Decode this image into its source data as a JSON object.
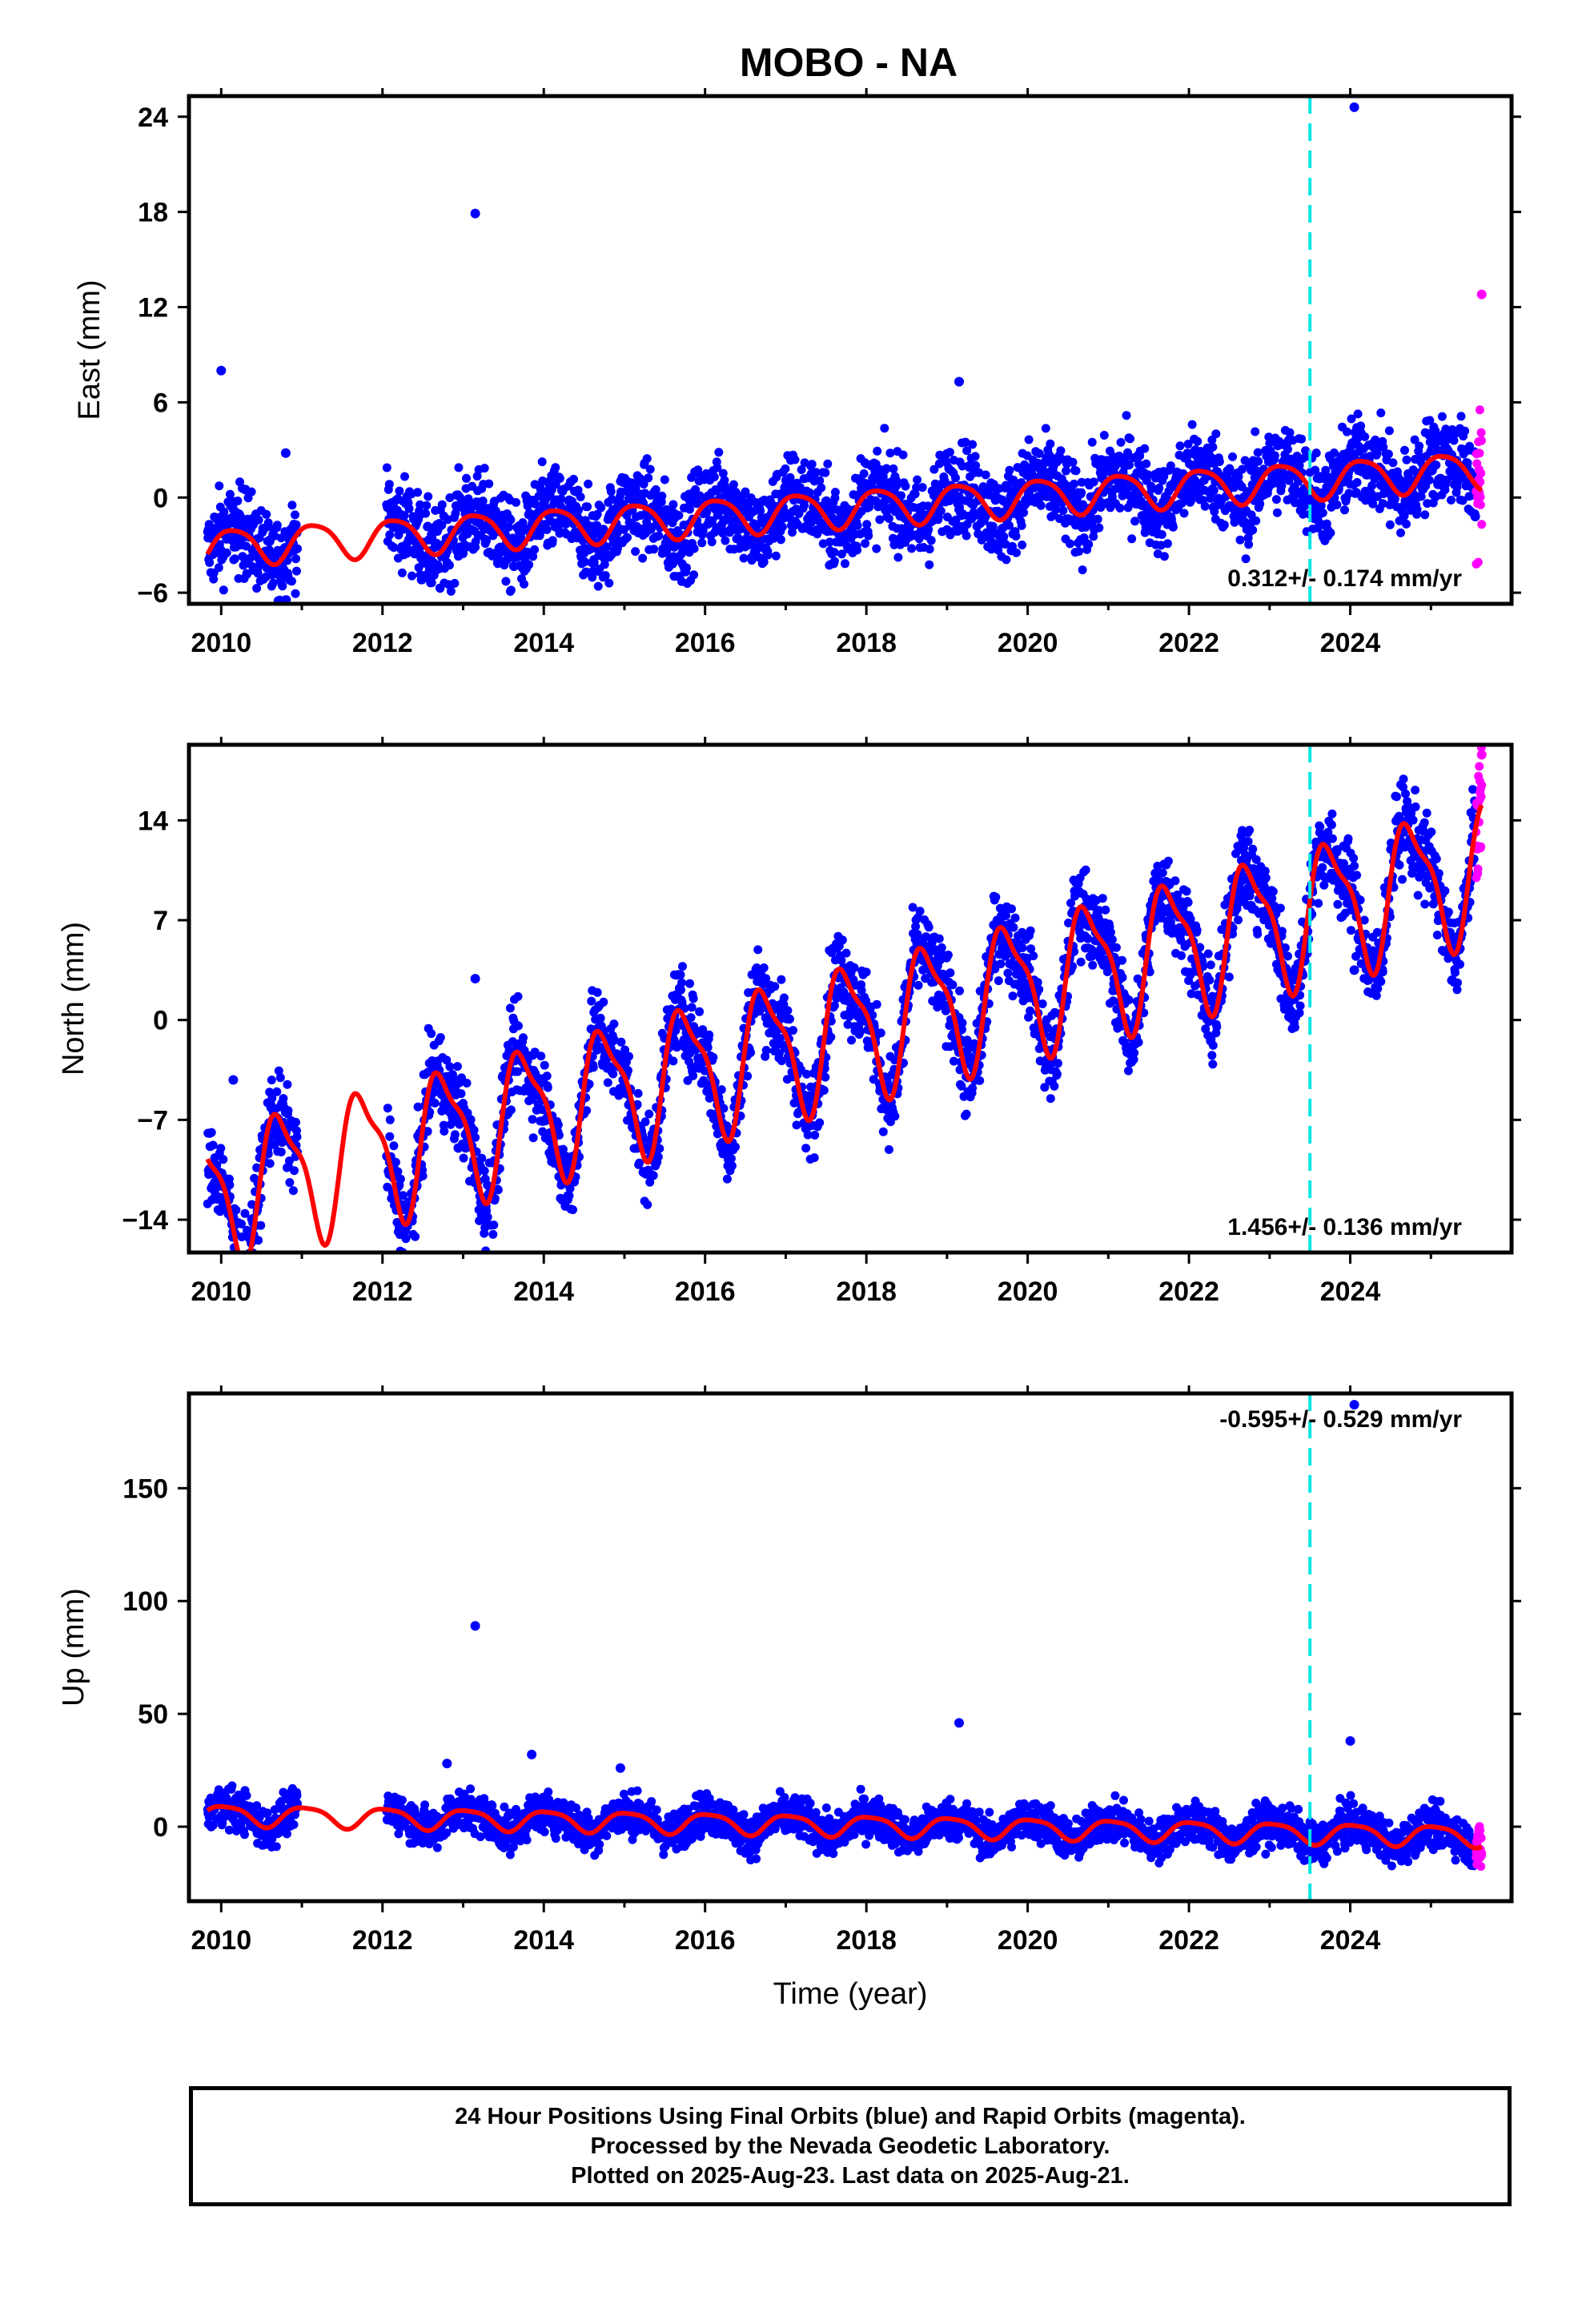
{
  "title": "MOBO - NA",
  "colors": {
    "final": "#0000ff",
    "rapid": "#ff00ff",
    "model": "#ff0000",
    "event": "#00e5e5",
    "axis": "#000000"
  },
  "footer": {
    "line1": "24 Hour Positions Using Final Orbits (blue) and Rapid Orbits (magenta).",
    "line2": "Processed by the Nevada Geodetic Laboratory.",
    "line3": "Plotted on 2025-Aug-23. Last data on 2025-Aug-21."
  },
  "chart_data": [
    {
      "type": "scatter",
      "ylabel": "East (mm)",
      "xlabel": "",
      "xlim": [
        2009.6,
        2026.0
      ],
      "ylim": [
        -6.7,
        25.3
      ],
      "xticks": [
        2010,
        2012,
        2014,
        2016,
        2018,
        2020,
        2022,
        2024
      ],
      "yticks": [
        -6,
        0,
        6,
        12,
        18,
        24
      ],
      "rate_label": "0.312+/- 0.174 mm/yr",
      "rate_position": "bottom-right",
      "event_line_x": 2023.5,
      "trend": {
        "t0": 2018.0,
        "offset": -0.6,
        "slope": 0.312,
        "amp1": 1.15,
        "phase1": 0.9,
        "amp2": 0.2,
        "phase2": 0.3
      },
      "series": [
        {
          "name": "Final Orbits",
          "color": "#0000ff",
          "scatter": 1.4,
          "segments": [
            [
              2009.83,
              2010.95
            ],
            [
              2012.05,
              2025.55
            ]
          ]
        },
        {
          "name": "Rapid Orbits",
          "color": "#ff00ff",
          "scatter": 2.6,
          "segments": [
            [
              2025.56,
              2025.63
            ]
          ]
        }
      ],
      "outliers": [
        [
          2013.15,
          17.9
        ],
        [
          2024.05,
          24.6
        ],
        [
          2019.15,
          7.3
        ],
        [
          2010.0,
          8.0
        ],
        [
          2010.3,
          0.5
        ],
        [
          2010.8,
          2.8
        ],
        [
          2025.55,
          -1.2
        ],
        [
          2025.63,
          12.8
        ]
      ],
      "grid": false
    },
    {
      "type": "scatter",
      "ylabel": "North (mm)",
      "xlabel": "",
      "xlim": [
        2009.6,
        2026.0
      ],
      "ylim": [
        -16.3,
        19.3
      ],
      "xticks": [
        2010,
        2012,
        2014,
        2016,
        2018,
        2020,
        2022,
        2024
      ],
      "yticks": [
        -14,
        -7,
        0,
        7,
        14
      ],
      "rate_label": "1.456+/- 0.136 mm/yr",
      "rate_position": "bottom-right",
      "event_line_x": 2023.5,
      "trend": {
        "t0": 2018.0,
        "offset": -0.4,
        "slope": 1.456,
        "amp1": 4.5,
        "phase1": 0.5,
        "amp2": 1.4,
        "phase2": 0.45
      },
      "series": [
        {
          "name": "Final Orbits",
          "color": "#0000ff",
          "scatter": 1.5,
          "segments": [
            [
              2009.83,
              2010.95
            ],
            [
              2012.05,
              2025.55
            ]
          ]
        },
        {
          "name": "Rapid Orbits",
          "color": "#ff00ff",
          "scatter": 2.2,
          "segments": [
            [
              2025.56,
              2025.63
            ]
          ]
        }
      ],
      "outliers": [
        [
          2013.15,
          2.9
        ],
        [
          2010.15,
          -4.2
        ],
        [
          2024.05,
          3.5
        ],
        [
          2025.63,
          18.6
        ]
      ],
      "grid": false
    },
    {
      "type": "scatter",
      "ylabel": "Up (mm)",
      "xlabel": "Time (year)",
      "xlim": [
        2009.6,
        2026.0
      ],
      "ylim": [
        -33,
        192
      ],
      "xticks": [
        2010,
        2012,
        2014,
        2016,
        2018,
        2020,
        2022,
        2024
      ],
      "yticks": [
        0,
        50,
        100,
        150
      ],
      "rate_label": "-0.595+/- 0.529 mm/yr",
      "rate_position": "top-right",
      "event_line_x": 2023.5,
      "trend": {
        "t0": 2018.0,
        "offset": 0.5,
        "slope": -0.595,
        "amp1": 4.5,
        "phase1": 0.8,
        "amp2": 1.0,
        "phase2": 0.2
      },
      "series": [
        {
          "name": "Final Orbits",
          "color": "#0000ff",
          "scatter": 4.5,
          "segments": [
            [
              2009.83,
              2010.95
            ],
            [
              2012.05,
              2025.55
            ]
          ]
        },
        {
          "name": "Rapid Orbits",
          "color": "#ff00ff",
          "scatter": 6.0,
          "segments": [
            [
              2025.56,
              2025.63
            ]
          ]
        }
      ],
      "outliers": [
        [
          2013.15,
          89.0
        ],
        [
          2019.15,
          46.0
        ],
        [
          2024.0,
          38.0
        ],
        [
          2024.05,
          187.0
        ],
        [
          2013.85,
          32.0
        ],
        [
          2012.8,
          28.0
        ],
        [
          2014.95,
          26.0
        ]
      ],
      "grid": false
    }
  ]
}
